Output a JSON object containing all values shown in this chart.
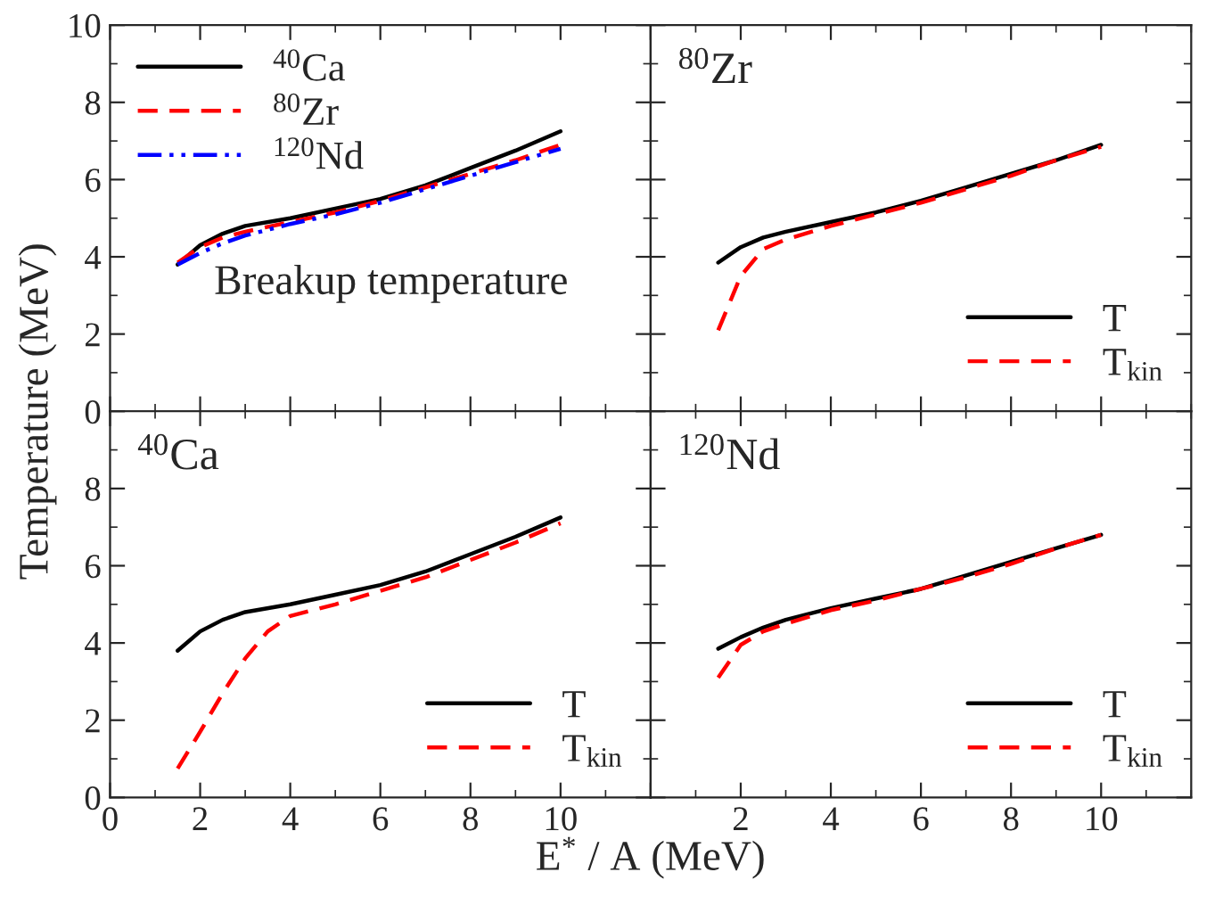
{
  "chart_data": [
    {
      "type": "line",
      "ylabel": "Temperature (MeV)",
      "xlim": [
        0,
        12
      ],
      "ylim": [
        0,
        10
      ],
      "xticks": [
        0,
        2,
        4,
        6,
        8,
        10
      ],
      "yticks": [
        0,
        2,
        4,
        6,
        8,
        10
      ],
      "tick_labels": "y",
      "legend": "top left",
      "grid": false,
      "annotations": [
        "Breakup temperature"
      ],
      "series": [
        {
          "name": "$^{40}$Ca",
          "color": "#000000",
          "line_style": "solid",
          "x": [
            1.5,
            2,
            2.5,
            3,
            4,
            5,
            6,
            7,
            8,
            9,
            10
          ],
          "values": [
            3.8,
            4.3,
            4.6,
            4.8,
            5.0,
            5.25,
            5.5,
            5.85,
            6.3,
            6.75,
            7.25
          ]
        },
        {
          "name": "$^{80}$Zr",
          "color": "#ff0000",
          "line_style": "dashed",
          "x": [
            1.5,
            2,
            2.5,
            3,
            4,
            5,
            6,
            7,
            8,
            9,
            10
          ],
          "values": [
            3.85,
            4.25,
            4.5,
            4.65,
            4.9,
            5.15,
            5.45,
            5.8,
            6.15,
            6.5,
            6.9
          ]
        },
        {
          "name": "$^{120}$Nd",
          "color": "#0000ff",
          "line_style": "dashdot",
          "x": [
            1.5,
            2,
            2.5,
            3,
            4,
            5,
            6,
            7,
            8,
            9,
            10
          ],
          "values": [
            3.8,
            4.1,
            4.35,
            4.55,
            4.85,
            5.1,
            5.4,
            5.75,
            6.1,
            6.45,
            6.8
          ]
        }
      ]
    },
    {
      "type": "line",
      "xlim": [
        0,
        12
      ],
      "ylim": [
        0,
        10
      ],
      "xticks": [
        0,
        2,
        4,
        6,
        8,
        10
      ],
      "yticks": [
        0,
        2,
        4,
        6,
        8,
        10
      ],
      "tick_labels": false,
      "legend": "bottom right",
      "grid": false,
      "annotations": [
        "$^{80}$Zr"
      ],
      "series": [
        {
          "name": "T",
          "color": "#000000",
          "line_style": "solid",
          "x": [
            1.5,
            2,
            2.5,
            3,
            4,
            5,
            6,
            7,
            8,
            9,
            10
          ],
          "values": [
            3.85,
            4.25,
            4.5,
            4.65,
            4.9,
            5.15,
            5.45,
            5.8,
            6.15,
            6.5,
            6.9
          ]
        },
        {
          "name": "T$_{kin}$",
          "color": "#ff0000",
          "line_style": "dashed",
          "x": [
            1.5,
            2,
            2.5,
            3,
            4,
            5,
            6,
            7,
            8,
            9,
            10
          ],
          "values": [
            2.1,
            3.5,
            4.2,
            4.45,
            4.8,
            5.1,
            5.4,
            5.75,
            6.1,
            6.5,
            6.85
          ]
        }
      ]
    },
    {
      "type": "line",
      "xlabel": "E$^{*}$ / A (MeV)",
      "xlim": [
        0,
        12
      ],
      "ylim": [
        0,
        10
      ],
      "xticks": [
        0,
        2,
        4,
        6,
        8,
        10
      ],
      "yticks": [
        0,
        2,
        4,
        6,
        8,
        {
          "value": 10,
          "label": null
        }
      ],
      "legend": "bottom right",
      "grid": false,
      "annotations": [
        "$^{40}$Ca"
      ],
      "series": [
        {
          "name": "T",
          "color": "#000000",
          "line_style": "solid",
          "x": [
            1.5,
            2,
            2.5,
            3,
            4,
            5,
            6,
            7,
            8,
            9,
            10
          ],
          "values": [
            3.8,
            4.3,
            4.6,
            4.8,
            5.0,
            5.25,
            5.5,
            5.85,
            6.3,
            6.75,
            7.25
          ]
        },
        {
          "name": "T$_{kin}$",
          "color": "#ff0000",
          "line_style": "dashed",
          "x": [
            1.5,
            2,
            2.5,
            3,
            3.5,
            4,
            5,
            6,
            7,
            8,
            9,
            10
          ],
          "values": [
            0.75,
            1.7,
            2.7,
            3.6,
            4.3,
            4.7,
            5.0,
            5.35,
            5.7,
            6.15,
            6.6,
            7.1
          ]
        }
      ]
    },
    {
      "type": "line",
      "xlim": [
        0,
        12
      ],
      "ylim": [
        0,
        10
      ],
      "xticks": [
        {
          "value": 0,
          "label": null
        },
        2,
        4,
        6,
        8,
        10
      ],
      "yticks": [
        0,
        2,
        4,
        6,
        8,
        10
      ],
      "tick_labels": "x",
      "legend": "bottom right",
      "grid": false,
      "annotations": [
        "$^{120}$Nd"
      ],
      "series": [
        {
          "name": "T",
          "color": "#000000",
          "line_style": "solid",
          "x": [
            1.5,
            2,
            2.5,
            3,
            4,
            5,
            6,
            7,
            8,
            9,
            10
          ],
          "values": [
            3.85,
            4.15,
            4.4,
            4.6,
            4.9,
            5.15,
            5.4,
            5.75,
            6.1,
            6.45,
            6.8
          ]
        },
        {
          "name": "T$_{kin}$",
          "color": "#ff0000",
          "line_style": "dashed",
          "x": [
            1.5,
            2,
            2.5,
            3,
            4,
            5,
            6,
            7,
            8,
            9,
            10
          ],
          "values": [
            3.1,
            3.95,
            4.3,
            4.5,
            4.85,
            5.1,
            5.4,
            5.7,
            6.05,
            6.45,
            6.8
          ]
        }
      ]
    }
  ]
}
